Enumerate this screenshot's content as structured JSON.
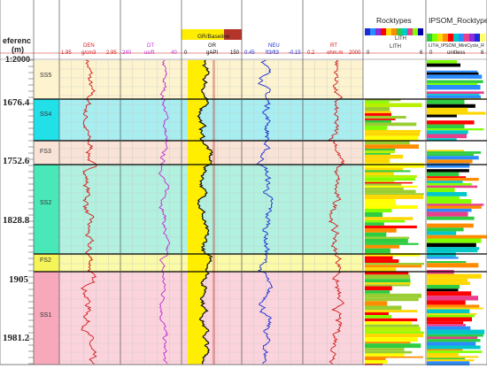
{
  "header": {
    "depth_title_1": "eferenc",
    "depth_title_2": "(m)",
    "depth_scale": "1:2000",
    "gr_panel_title": "GR/Baseline",
    "rocktypes_title": "Rocktypes",
    "ipsom_title": "IPSOM_Rocktypes",
    "lith_legend_label": "LITH",
    "ipsom_mnem": "LITH_IPSOM_MiniCycle_R"
  },
  "tracks": [
    {
      "mnem": "DEN",
      "unit": "g/cm3",
      "left": "1.95",
      "right": "2.95",
      "color": "#d11b1b"
    },
    {
      "mnem": "DT",
      "unit": "us/ft",
      "left": "240",
      "right": "40",
      "color": "#c02cd3"
    },
    {
      "mnem": "GR",
      "unit": "gAPI",
      "left": "0",
      "right": "150",
      "color": "#111111"
    },
    {
      "mnem": "NEU",
      "unit": "ft3/ft3",
      "left": "0.45",
      "right": "-0.15",
      "color": "#1a2fd4"
    },
    {
      "mnem": "RT",
      "unit": "ohm.m",
      "left": "0.2",
      "right": "2000",
      "color": "#d11b1b"
    },
    {
      "mnem": "LITH",
      "unit": "",
      "left": "0",
      "right": "6",
      "color": "#222222"
    },
    {
      "mnem": "",
      "unit": "unitless",
      "left": "0",
      "right": "6",
      "color": "#222222"
    }
  ],
  "depths": [
    "1676.4",
    "1752.6",
    "1828.8",
    "1905",
    "1981.2"
  ],
  "zones": [
    {
      "name": "SS5",
      "color": "#fdf3cf",
      "tag_color": "#fdf3cf"
    },
    {
      "name": "SS4",
      "color": "#a8eef0",
      "tag_color": "#22e0e8"
    },
    {
      "name": "FS3",
      "color": "#f8e3d6",
      "tag_color": "#f8e3d6"
    },
    {
      "name": "SS2",
      "color": "#b2f0df",
      "tag_color": "#4ae8b8"
    },
    {
      "name": "FS2",
      "color": "#fafaa8",
      "tag_color": "#f5f55a"
    },
    {
      "name": "SS1",
      "color": "#fbd3dc",
      "tag_color": "#f7a8ba"
    }
  ],
  "colors": {
    "grid": "#c7c7c7",
    "header_line": "#d11b1b",
    "gr_fill": "#ffee00",
    "gr_baseline_bar": "#b5342a",
    "zone_border": "#000000"
  }
}
